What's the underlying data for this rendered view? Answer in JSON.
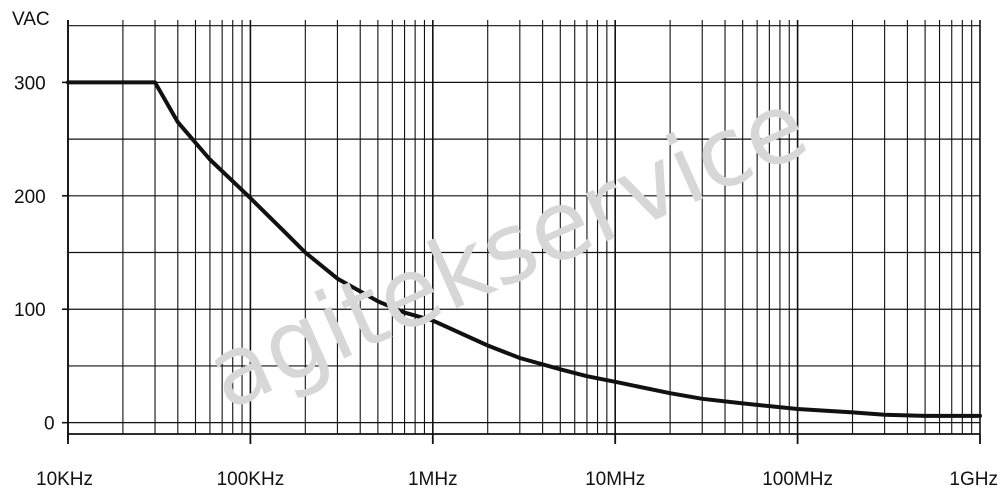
{
  "chart_data": {
    "type": "line",
    "title": "",
    "xlabel": "",
    "ylabel": "VAC",
    "x_scale": "log",
    "x_ticks": [
      {
        "value": 10000,
        "label": "10KHz"
      },
      {
        "value": 100000,
        "label": "100KHz"
      },
      {
        "value": 1000000,
        "label": "1MHz"
      },
      {
        "value": 10000000,
        "label": "10MHz"
      },
      {
        "value": 100000000,
        "label": "100MHz"
      },
      {
        "value": 1000000000,
        "label": "1GHz"
      }
    ],
    "y_ticks": [
      {
        "value": 0,
        "label": "0"
      },
      {
        "value": 100,
        "label": "100"
      },
      {
        "value": 200,
        "label": "200"
      },
      {
        "value": 300,
        "label": "300"
      }
    ],
    "xlim": [
      10000,
      1000000000
    ],
    "ylim": [
      -10,
      355
    ],
    "grid": true,
    "series": [
      {
        "x": [
          10000,
          20000,
          30000,
          40000,
          60000,
          100000,
          150000,
          200000,
          300000,
          500000,
          700000,
          1000000,
          2000000,
          3000000,
          5000000,
          7000000,
          10000000,
          20000000,
          30000000,
          50000000,
          100000000,
          200000000,
          300000000,
          500000000,
          1000000000
        ],
        "y": [
          300,
          300,
          300,
          265,
          232,
          198,
          170,
          150,
          127,
          107,
          97,
          90,
          68,
          57,
          47,
          41,
          36,
          26,
          21,
          17,
          12,
          9,
          7,
          6,
          6
        ]
      }
    ],
    "color": "#111111"
  },
  "watermark": "agitekservice"
}
